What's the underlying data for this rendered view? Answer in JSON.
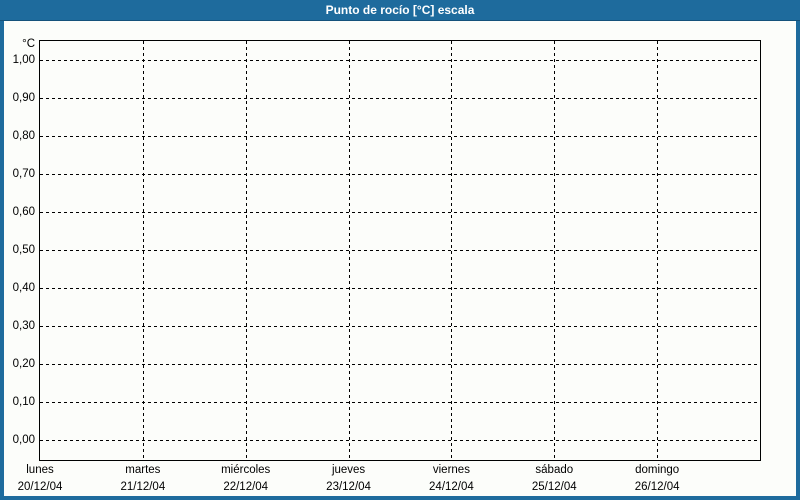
{
  "window": {
    "title": "Punto de rocío [°C] escala"
  },
  "colors": {
    "titlebar_blue": "#1e6b9d",
    "frame_border_blue": "#1e6b9d",
    "canvas_background": "#fcfdfa",
    "grid_line": "#000000",
    "title_text": "#ffffff",
    "axis_text": "#000000"
  },
  "chart_data": {
    "type": "line",
    "title": "Punto de rocío [°C] escala",
    "unit_label": "°C",
    "ylabel": "°C",
    "xlabel": "",
    "ylim": [
      0.0,
      1.0
    ],
    "y_tick_step": 0.1,
    "y_ticks": [
      "1,00",
      "0,90",
      "0,80",
      "0,70",
      "0,60",
      "0,50",
      "0,40",
      "0,30",
      "0,20",
      "0,10",
      "0,00"
    ],
    "x_axis": {
      "days": [
        {
          "weekday": "lunes",
          "date": "20/12/04"
        },
        {
          "weekday": "martes",
          "date": "21/12/04"
        },
        {
          "weekday": "miércoles",
          "date": "22/12/04"
        },
        {
          "weekday": "jueves",
          "date": "23/12/04"
        },
        {
          "weekday": "viernes",
          "date": "24/12/04"
        },
        {
          "weekday": "sábado",
          "date": "25/12/04"
        },
        {
          "weekday": "domingo",
          "date": "26/12/04"
        }
      ]
    },
    "grid": "dashed",
    "legend": "none",
    "series": []
  }
}
